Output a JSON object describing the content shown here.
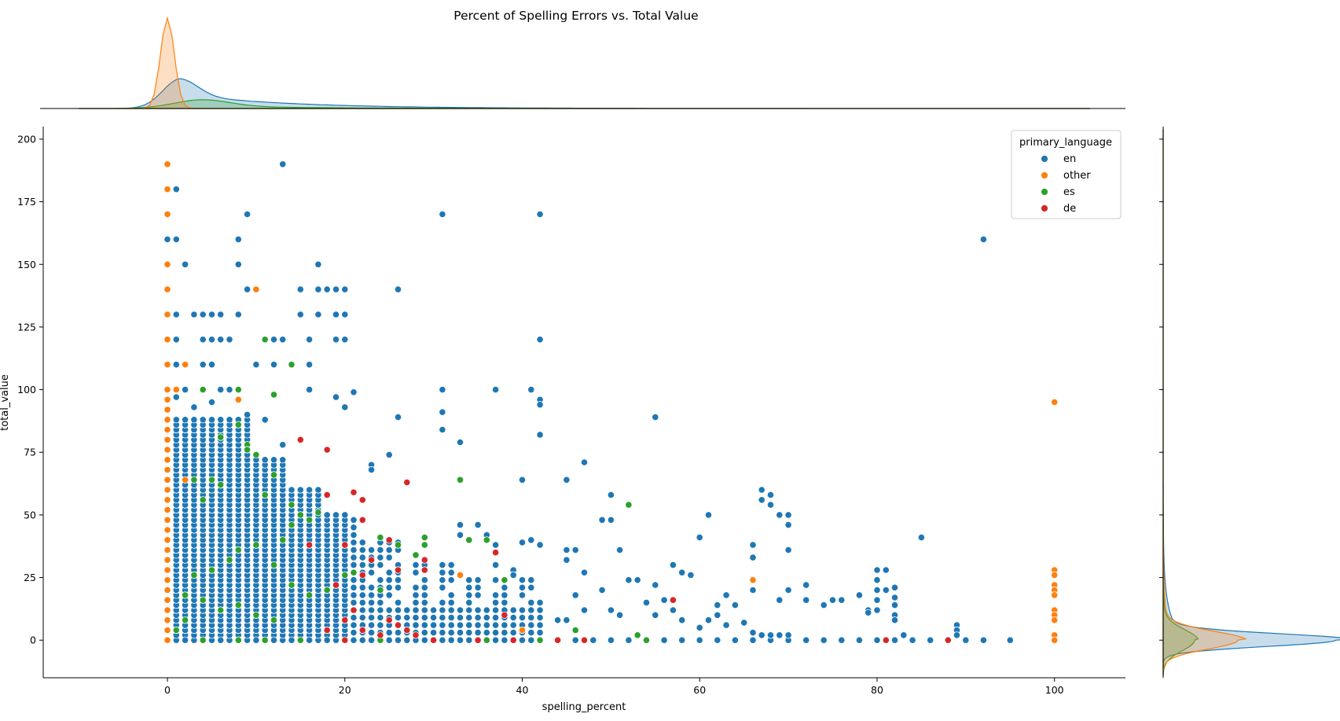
{
  "chart_data": {
    "type": "scatter",
    "title": "Percent of Spelling Errors vs. Total Value",
    "xlabel": "spelling_percent",
    "ylabel": "total_value",
    "xlim": [
      -14,
      108
    ],
    "ylim": [
      -15,
      205
    ],
    "xticks": [
      0,
      20,
      40,
      60,
      80,
      100
    ],
    "yticks": [
      0,
      25,
      50,
      75,
      100,
      125,
      150,
      175,
      200
    ],
    "grid": false,
    "marginals": "kde on top (x) and right (y), filled per series",
    "legend": {
      "title": "primary_language",
      "placement": "top-right",
      "entries": [
        "en",
        "other",
        "es",
        "de"
      ]
    },
    "colors": {
      "en": "#1f77b4",
      "other": "#ff7f0e",
      "es": "#2ca02c",
      "de": "#d62728"
    },
    "series": [
      {
        "name": "en",
        "points": [
          [
            13,
            190
          ],
          [
            1,
            180
          ],
          [
            0,
            160
          ],
          [
            1,
            160
          ],
          [
            8,
            160
          ],
          [
            9,
            170
          ],
          [
            31,
            170
          ],
          [
            42,
            170
          ],
          [
            92,
            160
          ],
          [
            2,
            150
          ],
          [
            8,
            150
          ],
          [
            17,
            150
          ],
          [
            9,
            140
          ],
          [
            15,
            140
          ],
          [
            17,
            140
          ],
          [
            18,
            140
          ],
          [
            19,
            140
          ],
          [
            20,
            140
          ],
          [
            26,
            140
          ],
          [
            1,
            130
          ],
          [
            3,
            130
          ],
          [
            4,
            130
          ],
          [
            5,
            130
          ],
          [
            6,
            130
          ],
          [
            8,
            130
          ],
          [
            15,
            130
          ],
          [
            17,
            130
          ],
          [
            19,
            130
          ],
          [
            20,
            130
          ],
          [
            1,
            120
          ],
          [
            4,
            120
          ],
          [
            5,
            120
          ],
          [
            6,
            120
          ],
          [
            7,
            120
          ],
          [
            12,
            120
          ],
          [
            13,
            120
          ],
          [
            16,
            120
          ],
          [
            19,
            120
          ],
          [
            20,
            120
          ],
          [
            42,
            120
          ],
          [
            1,
            110
          ],
          [
            4,
            110
          ],
          [
            5,
            110
          ],
          [
            10,
            110
          ],
          [
            12,
            110
          ],
          [
            14,
            110
          ],
          [
            16,
            110
          ],
          [
            2,
            100
          ],
          [
            4,
            100
          ],
          [
            6,
            100
          ],
          [
            7,
            100
          ],
          [
            8,
            100
          ],
          [
            16,
            100
          ],
          [
            21,
            99
          ],
          [
            31,
            100
          ],
          [
            37,
            100
          ],
          [
            41,
            100
          ],
          [
            42,
            96
          ],
          [
            42,
            94
          ],
          [
            1,
            97
          ],
          [
            3,
            93
          ],
          [
            5,
            95
          ],
          [
            9,
            90
          ],
          [
            11,
            88
          ],
          [
            19,
            97
          ],
          [
            20,
            93
          ],
          [
            26,
            89
          ],
          [
            31,
            91
          ],
          [
            55,
            89
          ],
          [
            31,
            84
          ],
          [
            42,
            82
          ],
          [
            33,
            79
          ],
          [
            13,
            78
          ],
          [
            25,
            74
          ],
          [
            47,
            71
          ],
          [
            23,
            70
          ],
          [
            23,
            68
          ],
          [
            40,
            64
          ],
          [
            45,
            64
          ],
          [
            67,
            60
          ],
          [
            68,
            58
          ],
          [
            67,
            56
          ],
          [
            69,
            50
          ],
          [
            70,
            50
          ],
          [
            70,
            46
          ],
          [
            68,
            54
          ],
          [
            60,
            41
          ],
          [
            61,
            50
          ],
          [
            85,
            41
          ],
          [
            50,
            58
          ],
          [
            49,
            48
          ],
          [
            50,
            48
          ],
          [
            53,
            24
          ],
          [
            54,
            15
          ],
          [
            56,
            16
          ],
          [
            57,
            30
          ],
          [
            58,
            27
          ],
          [
            59,
            26
          ],
          [
            62,
            14
          ],
          [
            63,
            18
          ],
          [
            64,
            14
          ],
          [
            66,
            38
          ],
          [
            66,
            33
          ],
          [
            66,
            20
          ],
          [
            69,
            16
          ],
          [
            70,
            20
          ],
          [
            70,
            36
          ],
          [
            72,
            22
          ],
          [
            72,
            16
          ],
          [
            74,
            14
          ],
          [
            75,
            16
          ],
          [
            76,
            16
          ],
          [
            78,
            18
          ],
          [
            79,
            12
          ],
          [
            79,
            11
          ],
          [
            80,
            28
          ],
          [
            80,
            24
          ],
          [
            80,
            20
          ],
          [
            80,
            16
          ],
          [
            80,
            12
          ],
          [
            81,
            28
          ],
          [
            81,
            20
          ],
          [
            82,
            21
          ],
          [
            82,
            17
          ],
          [
            82,
            14
          ],
          [
            82,
            10
          ],
          [
            82,
            8
          ],
          [
            83,
            2
          ],
          [
            89,
            6
          ],
          [
            89,
            4
          ],
          [
            89,
            2
          ],
          [
            33,
            46
          ],
          [
            33,
            42
          ],
          [
            34,
            40
          ],
          [
            35,
            46
          ],
          [
            36,
            42
          ],
          [
            37,
            38
          ],
          [
            37,
            30
          ],
          [
            39,
            28
          ],
          [
            39,
            26
          ],
          [
            40,
            39
          ],
          [
            41,
            40
          ],
          [
            42,
            38
          ],
          [
            42,
            15
          ],
          [
            44,
            8
          ],
          [
            45,
            8
          ],
          [
            45,
            36
          ],
          [
            45,
            32
          ],
          [
            46,
            36
          ],
          [
            46,
            18
          ],
          [
            47,
            27
          ],
          [
            47,
            12
          ],
          [
            49,
            20
          ],
          [
            50,
            12
          ],
          [
            51,
            36
          ],
          [
            51,
            10
          ],
          [
            52,
            24
          ],
          [
            55,
            22
          ],
          [
            55,
            10
          ],
          [
            57,
            12
          ],
          [
            58,
            8
          ],
          [
            60,
            5
          ],
          [
            61,
            8
          ],
          [
            62,
            10
          ],
          [
            63,
            6
          ],
          [
            65,
            7
          ],
          [
            66,
            3
          ],
          [
            67,
            2
          ],
          [
            68,
            2
          ],
          [
            69,
            2
          ],
          [
            70,
            2
          ]
        ],
        "baseline_x_values_at_y0": [
          0,
          2,
          4,
          6,
          8,
          10,
          12,
          14,
          16,
          18,
          20,
          22,
          24,
          26,
          28,
          30,
          32,
          34,
          36,
          38,
          40,
          42,
          44,
          46,
          48,
          50,
          52,
          54,
          56,
          58,
          60,
          62,
          64,
          66,
          68,
          70,
          72,
          74,
          76,
          78,
          80,
          82,
          84,
          86,
          88,
          90,
          92,
          95
        ]
      },
      {
        "name": "other",
        "points": [
          [
            0,
            190
          ],
          [
            0,
            180
          ],
          [
            0,
            170
          ],
          [
            0,
            150
          ],
          [
            0,
            140
          ],
          [
            0,
            130
          ],
          [
            0,
            120
          ],
          [
            0,
            110
          ],
          [
            0,
            100
          ],
          [
            0,
            96
          ],
          [
            0,
            92
          ],
          [
            0,
            88
          ],
          [
            0,
            84
          ],
          [
            0,
            80
          ],
          [
            0,
            76
          ],
          [
            0,
            72
          ],
          [
            0,
            68
          ],
          [
            0,
            64
          ],
          [
            0,
            60
          ],
          [
            0,
            56
          ],
          [
            0,
            52
          ],
          [
            0,
            48
          ],
          [
            0,
            44
          ],
          [
            0,
            40
          ],
          [
            0,
            36
          ],
          [
            0,
            32
          ],
          [
            0,
            28
          ],
          [
            0,
            24
          ],
          [
            0,
            20
          ],
          [
            0,
            16
          ],
          [
            0,
            12
          ],
          [
            0,
            8
          ],
          [
            0,
            4
          ],
          [
            0,
            0
          ],
          [
            1,
            100
          ],
          [
            2,
            110
          ],
          [
            2,
            64
          ],
          [
            10,
            140
          ],
          [
            8,
            96
          ],
          [
            33,
            26
          ],
          [
            40,
            4
          ],
          [
            66,
            24
          ],
          [
            100,
            95
          ],
          [
            100,
            28
          ],
          [
            100,
            26
          ],
          [
            100,
            22
          ],
          [
            100,
            20
          ],
          [
            100,
            18
          ],
          [
            100,
            12
          ],
          [
            100,
            10
          ],
          [
            100,
            8
          ],
          [
            100,
            2
          ],
          [
            100,
            0
          ]
        ]
      },
      {
        "name": "es",
        "points": [
          [
            11,
            120
          ],
          [
            14,
            110
          ],
          [
            4,
            100
          ],
          [
            8,
            100
          ],
          [
            12,
            98
          ],
          [
            8,
            86
          ],
          [
            9,
            78
          ],
          [
            9,
            76
          ],
          [
            6,
            81
          ],
          [
            10,
            74
          ],
          [
            3,
            64
          ],
          [
            5,
            64
          ],
          [
            6,
            62
          ],
          [
            4,
            56
          ],
          [
            12,
            66
          ],
          [
            11,
            58
          ],
          [
            14,
            54
          ],
          [
            15,
            50
          ],
          [
            16,
            48
          ],
          [
            17,
            51
          ],
          [
            14,
            46
          ],
          [
            13,
            40
          ],
          [
            10,
            38
          ],
          [
            8,
            36
          ],
          [
            7,
            32
          ],
          [
            5,
            28
          ],
          [
            3,
            26
          ],
          [
            12,
            30
          ],
          [
            14,
            22
          ],
          [
            16,
            18
          ],
          [
            18,
            20
          ],
          [
            20,
            26
          ],
          [
            21,
            27
          ],
          [
            24,
            41
          ],
          [
            24,
            20
          ],
          [
            26,
            38
          ],
          [
            28,
            34
          ],
          [
            29,
            41
          ],
          [
            29,
            38
          ],
          [
            33,
            64
          ],
          [
            34,
            40
          ],
          [
            36,
            40
          ],
          [
            38,
            24
          ],
          [
            52,
            54
          ],
          [
            46,
            4
          ],
          [
            53,
            2
          ],
          [
            2,
            18
          ],
          [
            4,
            16
          ],
          [
            6,
            12
          ],
          [
            8,
            14
          ],
          [
            10,
            10
          ],
          [
            12,
            8
          ],
          [
            2,
            8
          ],
          [
            1,
            4
          ],
          [
            0,
            0
          ],
          [
            4,
            0
          ],
          [
            8,
            0
          ],
          [
            11,
            0
          ],
          [
            15,
            0
          ],
          [
            24,
            0
          ],
          [
            30,
            0
          ],
          [
            36,
            0
          ],
          [
            42,
            0
          ],
          [
            54,
            0
          ]
        ]
      },
      {
        "name": "de",
        "points": [
          [
            15,
            80
          ],
          [
            18,
            76
          ],
          [
            27,
            63
          ],
          [
            21,
            59
          ],
          [
            22,
            56
          ],
          [
            18,
            58
          ],
          [
            22,
            48
          ],
          [
            25,
            40
          ],
          [
            20,
            38
          ],
          [
            23,
            32
          ],
          [
            29,
            32
          ],
          [
            29,
            28
          ],
          [
            26,
            28
          ],
          [
            37,
            35
          ],
          [
            22,
            26
          ],
          [
            21,
            12
          ],
          [
            20,
            8
          ],
          [
            22,
            4
          ],
          [
            24,
            2
          ],
          [
            25,
            8
          ],
          [
            26,
            6
          ],
          [
            27,
            4
          ],
          [
            28,
            2
          ],
          [
            38,
            10
          ],
          [
            57,
            16
          ],
          [
            16,
            38
          ],
          [
            19,
            22
          ],
          [
            18,
            4
          ],
          [
            44,
            0
          ],
          [
            47,
            0
          ],
          [
            81,
            0
          ],
          [
            88,
            0
          ],
          [
            35,
            0
          ],
          [
            39,
            0
          ],
          [
            20,
            0
          ],
          [
            30,
            0
          ]
        ]
      }
    ]
  }
}
